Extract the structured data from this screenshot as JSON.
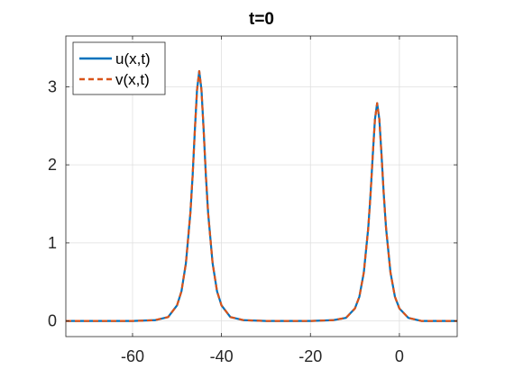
{
  "chart_data": {
    "type": "line",
    "title": "t=0",
    "xlabel": "",
    "ylabel": "",
    "xlim": [
      -75,
      13
    ],
    "ylim": [
      -0.2,
      3.65
    ],
    "xticks": [
      -60,
      -40,
      -20,
      0
    ],
    "yticks": [
      0,
      1,
      2,
      3
    ],
    "xtick_labels": [
      "-60",
      "-40",
      "-20",
      "0"
    ],
    "ytick_labels": [
      "0",
      "1",
      "2",
      "3"
    ],
    "grid": true,
    "legend_position": "top-left",
    "series": [
      {
        "name": "u(x,t)",
        "color": "#0072BD",
        "style": "solid",
        "x": [
          -75,
          -60,
          -55,
          -52,
          -50,
          -49,
          -48,
          -47,
          -46.5,
          -46,
          -45.5,
          -45,
          -44.5,
          -44,
          -43.5,
          -43,
          -42,
          -41,
          -40,
          -38,
          -35,
          -30,
          -20,
          -15,
          -12,
          -10,
          -9,
          -8,
          -7,
          -6.5,
          -6,
          -5.5,
          -5,
          -4.5,
          -4,
          -3.5,
          -3,
          -2,
          -1,
          0,
          2,
          5,
          13
        ],
        "y": [
          0,
          0,
          0.01,
          0.05,
          0.2,
          0.38,
          0.74,
          1.38,
          1.85,
          2.43,
          2.96,
          3.2,
          2.96,
          2.43,
          1.85,
          1.38,
          0.74,
          0.38,
          0.2,
          0.05,
          0.01,
          0,
          0,
          0.01,
          0.04,
          0.16,
          0.31,
          0.62,
          1.19,
          1.61,
          2.11,
          2.58,
          2.79,
          2.58,
          2.11,
          1.61,
          1.19,
          0.62,
          0.31,
          0.16,
          0.04,
          0,
          0
        ]
      },
      {
        "name": "v(x,t)",
        "color": "#D95319",
        "style": "dashed",
        "x": [
          -75,
          -60,
          -55,
          -52,
          -50,
          -49,
          -48,
          -47,
          -46.5,
          -46,
          -45.5,
          -45,
          -44.5,
          -44,
          -43.5,
          -43,
          -42,
          -41,
          -40,
          -38,
          -35,
          -30,
          -20,
          -15,
          -12,
          -10,
          -9,
          -8,
          -7,
          -6.5,
          -6,
          -5.5,
          -5,
          -4.5,
          -4,
          -3.5,
          -3,
          -2,
          -1,
          0,
          2,
          5,
          13
        ],
        "y": [
          0,
          0,
          0.01,
          0.05,
          0.2,
          0.38,
          0.74,
          1.38,
          1.85,
          2.43,
          2.96,
          3.2,
          2.96,
          2.43,
          1.85,
          1.38,
          0.74,
          0.38,
          0.2,
          0.05,
          0.01,
          0,
          0,
          0.01,
          0.04,
          0.16,
          0.31,
          0.62,
          1.19,
          1.61,
          2.11,
          2.58,
          2.79,
          2.58,
          2.11,
          1.61,
          1.19,
          0.62,
          0.31,
          0.16,
          0.04,
          0,
          0
        ]
      }
    ]
  }
}
